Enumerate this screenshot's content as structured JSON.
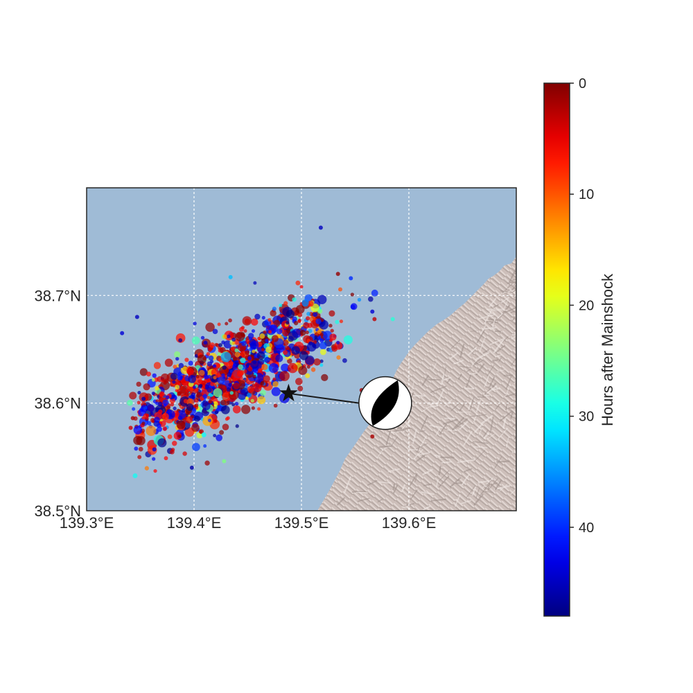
{
  "chart_data": {
    "type": "scatter",
    "map": {
      "lon_range": [
        139.3,
        139.7
      ],
      "lat_range": [
        38.5,
        38.8
      ],
      "ocean_color": "#9fbbd6",
      "land_color": "#cdbfba",
      "grid": "dotted white"
    },
    "x_ticks": [
      {
        "value": 139.3,
        "label": "139.3°E"
      },
      {
        "value": 139.4,
        "label": "139.4°E"
      },
      {
        "value": 139.5,
        "label": "139.5°E"
      },
      {
        "value": 139.6,
        "label": "139.6°E"
      }
    ],
    "y_ticks": [
      {
        "value": 38.5,
        "label": "38.5°N"
      },
      {
        "value": 38.6,
        "label": "38.6°N"
      },
      {
        "value": 38.7,
        "label": "38.7°N"
      }
    ],
    "mainshock": {
      "lon": 139.488,
      "lat": 38.609,
      "symbol": "star",
      "color": "#111111"
    },
    "focal_mechanism": {
      "lon": 139.578,
      "lat": 38.6,
      "style": "beachball"
    },
    "colorbar": {
      "label": "Hours after Mainshock",
      "colormap": "jet (reversed)",
      "range": [
        0,
        48
      ],
      "ticks": [
        {
          "value": 0,
          "label": "0"
        },
        {
          "value": 10,
          "label": "10"
        },
        {
          "value": 20,
          "label": "20"
        },
        {
          "value": 30,
          "label": "30"
        },
        {
          "value": 40,
          "label": "40"
        }
      ]
    },
    "aftershocks": {
      "color_encodes": "hours after mainshock",
      "size_encodes": "magnitude",
      "approx_count": 1200,
      "cluster": {
        "lon_range": [
          139.36,
          139.55
        ],
        "lat_range": [
          38.54,
          38.71
        ],
        "trend": "NE-SW",
        "dense_center": [
          139.43,
          38.625
        ]
      },
      "outliers": [
        {
          "lon": 139.518,
          "lat": 38.763,
          "hours": 45
        },
        {
          "lon": 139.434,
          "lat": 38.717,
          "hours": 33
        },
        {
          "lon": 139.534,
          "lat": 38.72,
          "hours": 1
        },
        {
          "lon": 139.546,
          "lat": 38.716,
          "hours": 40
        },
        {
          "lon": 139.333,
          "lat": 38.665,
          "hours": 44
        },
        {
          "lon": 139.347,
          "lat": 38.68,
          "hours": 45
        },
        {
          "lon": 139.343,
          "lat": 38.586,
          "hours": 2
        },
        {
          "lon": 139.341,
          "lat": 38.577,
          "hours": 4
        },
        {
          "lon": 139.566,
          "lat": 38.569,
          "hours": 2
        },
        {
          "lon": 139.585,
          "lat": 38.678,
          "hours": 28
        },
        {
          "lon": 139.568,
          "lat": 38.678,
          "hours": 3
        },
        {
          "lon": 139.566,
          "lat": 38.685,
          "hours": 44
        },
        {
          "lon": 139.363,
          "lat": 38.557,
          "hours": 44
        },
        {
          "lon": 139.428,
          "lat": 38.546,
          "hours": 24
        },
        {
          "lon": 139.398,
          "lat": 38.54,
          "hours": 46
        },
        {
          "lon": 139.353,
          "lat": 38.604,
          "hours": 46
        },
        {
          "lon": 139.556,
          "lat": 38.612,
          "hours": 2
        }
      ]
    }
  }
}
